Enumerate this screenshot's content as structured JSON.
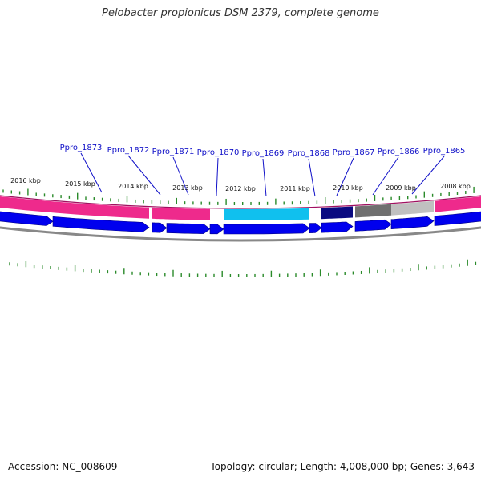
{
  "title": "Pelobacter propionicus DSM 2379, complete genome",
  "footer": {
    "accession_text": "Accession: NC_008609",
    "summary_text": "Topology: circular; Length: 4,008,000 bp; Genes: 3,643"
  },
  "colors": {
    "gene_label": "#1010c8",
    "leader_line": "#1010c8",
    "tick": "#2a8a2a",
    "cds_arrow": "#0000ee",
    "backbone": "#888888",
    "feature_band_outline": "#a01060"
  },
  "genome": {
    "length_bp": 4008000,
    "genes_count": 3643,
    "topology": "circular",
    "accession": "NC_008609"
  },
  "kbp_labels": [
    {
      "text": "2016 kbp",
      "kbp": 2016
    },
    {
      "text": "2015 kbp",
      "kbp": 2015
    },
    {
      "text": "2014 kbp",
      "kbp": 2014
    },
    {
      "text": "2013 kbp",
      "kbp": 2013
    },
    {
      "text": "2012 kbp",
      "kbp": 2012
    },
    {
      "text": "2011 kbp",
      "kbp": 2011
    },
    {
      "text": "2010 kbp",
      "kbp": 2010
    },
    {
      "text": "2009 kbp",
      "kbp": 2009
    },
    {
      "text": "2008 kbp",
      "kbp": 2008
    }
  ],
  "gene_labels": [
    {
      "text": "Ppro_1873"
    },
    {
      "text": "Ppro_1872"
    },
    {
      "text": "Ppro_1871"
    },
    {
      "text": "Ppro_1870"
    },
    {
      "text": "Ppro_1869"
    },
    {
      "text": "Ppro_1868"
    },
    {
      "text": "Ppro_1867"
    },
    {
      "text": "Ppro_1866"
    },
    {
      "text": "Ppro_1865"
    }
  ],
  "feature_band": [
    {
      "color": "#ee2a8c"
    },
    {
      "color": "#ee2a8c"
    },
    {
      "color": "#ee2a8c"
    },
    {
      "color": "#10c0ee"
    },
    {
      "color": "#ee2a8c"
    },
    {
      "color": "#0a0a80"
    },
    {
      "color": "#707070"
    },
    {
      "color": "#c0c0c0"
    },
    {
      "color": "#ee2a8c"
    }
  ]
}
